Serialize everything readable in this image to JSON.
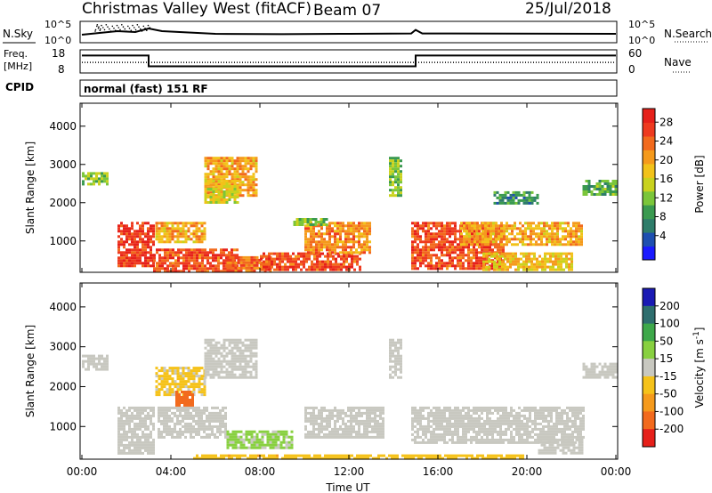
{
  "header": {
    "station": "Christmas Valley West (fitACF)",
    "beam": "Beam 07",
    "date": "25/Jul/2018"
  },
  "panels": {
    "nsky_label": "N.Sky",
    "nsearch_label": "N.Search",
    "freq_label_top": "Freq.",
    "freq_label_unit": "[MHz]",
    "nave_label": "Nave",
    "cpid_label": "CPID",
    "cpid_value": "normal (fast) 151 RF",
    "noise_left_ticks": [
      "10^5",
      "10^0"
    ],
    "noise_right_ticks": [
      "10^5",
      "10^0"
    ],
    "freq_left_ticks": [
      "18",
      "8"
    ],
    "freq_right_ticks": [
      "60",
      "0"
    ]
  },
  "chart_data": [
    {
      "type": "heatmap",
      "name": "power",
      "xlabel": "Time UT",
      "ylabel": "Slant Range [km]",
      "x_ticks": [
        "00:00",
        "04:00",
        "08:00",
        "12:00",
        "16:00",
        "20:00",
        "00:00"
      ],
      "y_ticks": [
        "1000",
        "2000",
        "3000",
        "4000"
      ],
      "xlim": [
        0,
        24
      ],
      "ylim": [
        180,
        4600
      ],
      "colorbar": {
        "label": "Power [dB]",
        "ticks": [
          "4",
          "8",
          "12",
          "16",
          "20",
          "24",
          "28"
        ],
        "range": [
          0,
          30
        ],
        "colors": [
          "#1a1aff",
          "#1e4fb0",
          "#2e7d6a",
          "#3a9a50",
          "#7bc63a",
          "#c9d21e",
          "#f2c21a",
          "#f59a1c",
          "#f26a1d",
          "#ee3a1f",
          "#e6201a"
        ]
      },
      "regions": [
        {
          "t0": 1.6,
          "t1": 3.2,
          "r0": 350,
          "r1": 1500,
          "p": 28
        },
        {
          "t0": 3.2,
          "t1": 7.0,
          "r0": 200,
          "r1": 800,
          "p": 26
        },
        {
          "t0": 3.3,
          "t1": 5.5,
          "r0": 1000,
          "r1": 1500,
          "p": 20
        },
        {
          "t0": 5.5,
          "t1": 7.8,
          "r0": 2200,
          "r1": 3200,
          "p": 20
        },
        {
          "t0": 5.5,
          "t1": 7.0,
          "r0": 2000,
          "r1": 2600,
          "p": 16
        },
        {
          "t0": 6.5,
          "t1": 8.5,
          "r0": 250,
          "r1": 600,
          "p": 24
        },
        {
          "t0": 8.0,
          "t1": 12.5,
          "r0": 250,
          "r1": 700,
          "p": 26
        },
        {
          "t0": 10.0,
          "t1": 13.0,
          "r0": 700,
          "r1": 1500,
          "p": 22
        },
        {
          "t0": 9.5,
          "t1": 11.0,
          "r0": 1400,
          "r1": 1600,
          "p": 12
        },
        {
          "t0": 13.8,
          "t1": 14.3,
          "r0": 2200,
          "r1": 3200,
          "p": 12
        },
        {
          "t0": 14.8,
          "t1": 19.0,
          "r0": 300,
          "r1": 1500,
          "p": 26
        },
        {
          "t0": 17.0,
          "t1": 22.5,
          "r0": 900,
          "r1": 1500,
          "p": 20
        },
        {
          "t0": 18.0,
          "t1": 22.0,
          "r0": 250,
          "r1": 700,
          "p": 18
        },
        {
          "t0": 22.5,
          "t1": 24.0,
          "r0": 2200,
          "r1": 2600,
          "p": 10
        },
        {
          "t0": 0.0,
          "t1": 1.2,
          "r0": 2500,
          "r1": 2800,
          "p": 12
        },
        {
          "t0": 18.5,
          "t1": 20.5,
          "r0": 2000,
          "r1": 2300,
          "p": 8
        }
      ]
    },
    {
      "type": "heatmap",
      "name": "velocity",
      "xlabel": "Time UT",
      "ylabel": "Slant Range [km]",
      "x_ticks": [
        "00:00",
        "04:00",
        "08:00",
        "12:00",
        "16:00",
        "20:00",
        "00:00"
      ],
      "y_ticks": [
        "1000",
        "2000",
        "3000",
        "4000"
      ],
      "xlim": [
        0,
        24
      ],
      "ylim": [
        180,
        4600
      ],
      "colorbar": {
        "label": "Velocity [m s^-1]",
        "ticks": [
          "200",
          "100",
          "50",
          "15",
          "-15",
          "-50",
          "-100",
          "-200"
        ],
        "range": [
          -250,
          250
        ],
        "colors": [
          "#1a1ab4",
          "#2e6e6e",
          "#3ea84a",
          "#88d040",
          "#c8c8c0",
          "#f5c21a",
          "#f59a1c",
          "#f26a1d",
          "#e6201a"
        ]
      },
      "regions": [
        {
          "t0": 1.6,
          "t1": 3.2,
          "r0": 350,
          "r1": 1500,
          "v": 0
        },
        {
          "t0": 3.3,
          "t1": 5.5,
          "r0": 1800,
          "r1": 2500,
          "v": -40
        },
        {
          "t0": 4.2,
          "t1": 5.0,
          "r0": 1500,
          "r1": 1900,
          "v": -200
        },
        {
          "t0": 5.5,
          "t1": 7.8,
          "r0": 2200,
          "r1": 3200,
          "v": 0
        },
        {
          "t0": 3.4,
          "t1": 6.5,
          "r0": 700,
          "r1": 1500,
          "v": 0
        },
        {
          "t0": 6.5,
          "t1": 9.5,
          "r0": 450,
          "r1": 900,
          "v": 40
        },
        {
          "t0": 5.0,
          "t1": 14.0,
          "r0": 180,
          "r1": 300,
          "v": -80
        },
        {
          "t0": 10.0,
          "t1": 13.5,
          "r0": 700,
          "r1": 1500,
          "v": 0
        },
        {
          "t0": 13.8,
          "t1": 14.3,
          "r0": 2200,
          "r1": 3200,
          "v": 10
        },
        {
          "t0": 14.8,
          "t1": 22.5,
          "r0": 600,
          "r1": 1500,
          "v": 0
        },
        {
          "t0": 20.5,
          "t1": 22.5,
          "r0": 300,
          "r1": 700,
          "v": 0
        },
        {
          "t0": 22.5,
          "t1": 24.0,
          "r0": 2200,
          "r1": 2600,
          "v": 0
        },
        {
          "t0": 0.0,
          "t1": 1.2,
          "r0": 2400,
          "r1": 2800,
          "v": 0
        },
        {
          "t0": 14.0,
          "t1": 20.0,
          "r0": 180,
          "r1": 300,
          "v": -60
        }
      ]
    }
  ],
  "line_data": {
    "noise_sky": [
      {
        "t": 0,
        "v": 0.35
      },
      {
        "t": 1.6,
        "v": 0.55
      },
      {
        "t": 2.4,
        "v": 0.5
      },
      {
        "t": 3.0,
        "v": 0.7
      },
      {
        "t": 3.6,
        "v": 0.55
      },
      {
        "t": 6,
        "v": 0.4
      },
      {
        "t": 9,
        "v": 0.38
      },
      {
        "t": 12,
        "v": 0.4
      },
      {
        "t": 14.8,
        "v": 0.42
      },
      {
        "t": 15.0,
        "v": 0.62
      },
      {
        "t": 15.3,
        "v": 0.42
      },
      {
        "t": 24,
        "v": 0.4
      }
    ],
    "freq_step": [
      {
        "t": 0,
        "v": 0.8
      },
      {
        "t": 3.0,
        "v": 0.8
      },
      {
        "t": 3.0,
        "v": 0.25
      },
      {
        "t": 15.0,
        "v": 0.25
      },
      {
        "t": 15.0,
        "v": 0.8
      },
      {
        "t": 24,
        "v": 0.8
      }
    ],
    "nave_level": 0.45
  }
}
